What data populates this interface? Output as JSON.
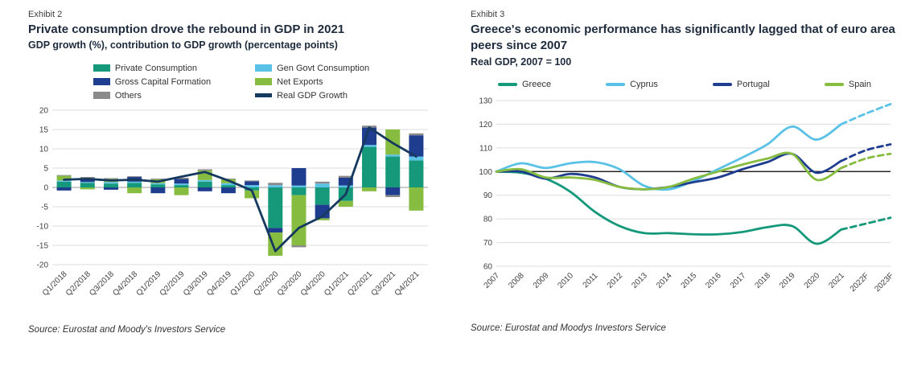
{
  "exhibit2": {
    "label": "Exhibit 2",
    "title": "Private consumption drove the rebound in GDP in 2021",
    "subtitle": "GDP growth (%), contribution to GDP growth (percentage points)",
    "source": "Source: Eurostat and Moody's Investors Service"
  },
  "exhibit3": {
    "label": "Exhibit 3",
    "title": "Greece's economic performance has significantly lagged that of euro area peers since 2007",
    "subtitle": "Real GDP, 2007 = 100",
    "source": "Source: Eurostat and Moodys Investors Service"
  },
  "colors": {
    "teal": "#16997B",
    "light_blue": "#5BC2E7",
    "dark_blue": "#1F3D8F",
    "light_green": "#86BC40",
    "gray": "#8A8A8A",
    "navy_line": "#16395F",
    "gridline": "#dcdcdc",
    "zero_line": "#9a9a9a",
    "baseline_black": "#000000",
    "tick_text": "#404040"
  },
  "chart_data": [
    {
      "type": "bar",
      "stacked": true,
      "title": "Private consumption drove the rebound in GDP in 2021",
      "categories": [
        "Q1/2018",
        "Q2/2018",
        "Q3/2018",
        "Q4/2018",
        "Q1/2019",
        "Q2/2019",
        "Q3/2019",
        "Q4/2019",
        "Q1/2020",
        "Q2/2020",
        "Q3/2020",
        "Q4/2020",
        "Q1/2021",
        "Q2/2021",
        "Q3/2021",
        "Q4/2021"
      ],
      "series": [
        {
          "name": "Private Consumption",
          "color": "#16997B",
          "values": [
            1.5,
            1.2,
            1.0,
            1.2,
            0.8,
            0.6,
            1.5,
            0.6,
            -0.8,
            -10.5,
            -2.0,
            -4.5,
            -3.5,
            10.5,
            8.0,
            7.0
          ]
        },
        {
          "name": "Gen Govt Consumption",
          "color": "#5BC2E7",
          "values": [
            0.3,
            0.2,
            0.4,
            0.3,
            0.3,
            0.4,
            0.4,
            0.5,
            0.6,
            0.6,
            0.5,
            1.0,
            0.5,
            0.5,
            0.5,
            1.0
          ]
        },
        {
          "name": "Gross Capital Formation",
          "color": "#1F3D8F",
          "values": [
            -0.8,
            1.0,
            -0.6,
            1.2,
            -1.5,
            1.2,
            -1.0,
            -1.5,
            1.0,
            -1.2,
            4.5,
            -3.5,
            2.0,
            4.5,
            -2.0,
            5.5
          ]
        },
        {
          "name": "Net Exports",
          "color": "#86BC40",
          "values": [
            1.2,
            -0.5,
            0.8,
            -1.5,
            1.0,
            -2.0,
            2.5,
            1.0,
            -2.0,
            -6.0,
            -13.0,
            -0.5,
            -1.5,
            -1.0,
            6.5,
            -6.0
          ]
        },
        {
          "name": "Others",
          "color": "#8A8A8A",
          "values": [
            0.2,
            0.3,
            0.2,
            0.2,
            0.2,
            0.3,
            0.3,
            0.2,
            0.2,
            0.6,
            -0.5,
            0.5,
            0.5,
            0.5,
            -0.5,
            0.5
          ]
        }
      ],
      "line_series": {
        "name": "Real GDP Growth",
        "color": "#16395F",
        "values": [
          2.0,
          2.2,
          1.8,
          2.0,
          1.5,
          2.8,
          4.0,
          1.8,
          -0.8,
          -16.5,
          -10.5,
          -7.5,
          -1.8,
          15.5,
          11.5,
          8.0
        ]
      },
      "ylim": [
        -20,
        20
      ],
      "yticks": [
        -20,
        -15,
        -10,
        -5,
        0,
        5,
        10,
        15,
        20
      ],
      "grid": true,
      "legend_position": "top"
    },
    {
      "type": "line",
      "title": "Greece's economic performance has significantly lagged that of euro area peers since 2007",
      "x": [
        "2007",
        "2008",
        "2009",
        "2010",
        "2011",
        "2012",
        "2013",
        "2014",
        "2015",
        "2016",
        "2017",
        "2018",
        "2019",
        "2020",
        "2021",
        "2022F",
        "2023F"
      ],
      "forecast_from_index": 14,
      "series": [
        {
          "name": "Greece",
          "color": "#16997B",
          "values": [
            100,
            99.5,
            97.0,
            91.5,
            83.0,
            77.0,
            74.0,
            74.0,
            73.5,
            73.5,
            74.5,
            76.5,
            77.0,
            69.5,
            75.5,
            78.0,
            80.5
          ]
        },
        {
          "name": "Cyprus",
          "color": "#5BC2E7",
          "values": [
            100,
            103.5,
            101.5,
            103.5,
            104.0,
            101.0,
            94.0,
            92.5,
            96.0,
            101.0,
            106.0,
            111.5,
            119.0,
            113.5,
            120.0,
            124.5,
            128.5
          ]
        },
        {
          "name": "Portugal",
          "color": "#1F3D8F",
          "values": [
            100,
            100.0,
            97.0,
            99.0,
            97.5,
            93.5,
            92.5,
            93.5,
            95.5,
            97.5,
            101.0,
            104.0,
            107.5,
            99.5,
            104.5,
            109.0,
            111.5
          ]
        },
        {
          "name": "Spain",
          "color": "#86BC40",
          "values": [
            100,
            101.0,
            97.5,
            97.5,
            96.5,
            93.5,
            92.5,
            93.5,
            97.0,
            100.0,
            103.0,
            105.5,
            107.5,
            96.5,
            101.5,
            105.5,
            107.5
          ]
        }
      ],
      "ylim": [
        60,
        130
      ],
      "yticks": [
        60,
        70,
        80,
        90,
        100,
        110,
        120,
        130
      ],
      "baseline": 100,
      "grid": true,
      "legend_position": "top"
    }
  ]
}
